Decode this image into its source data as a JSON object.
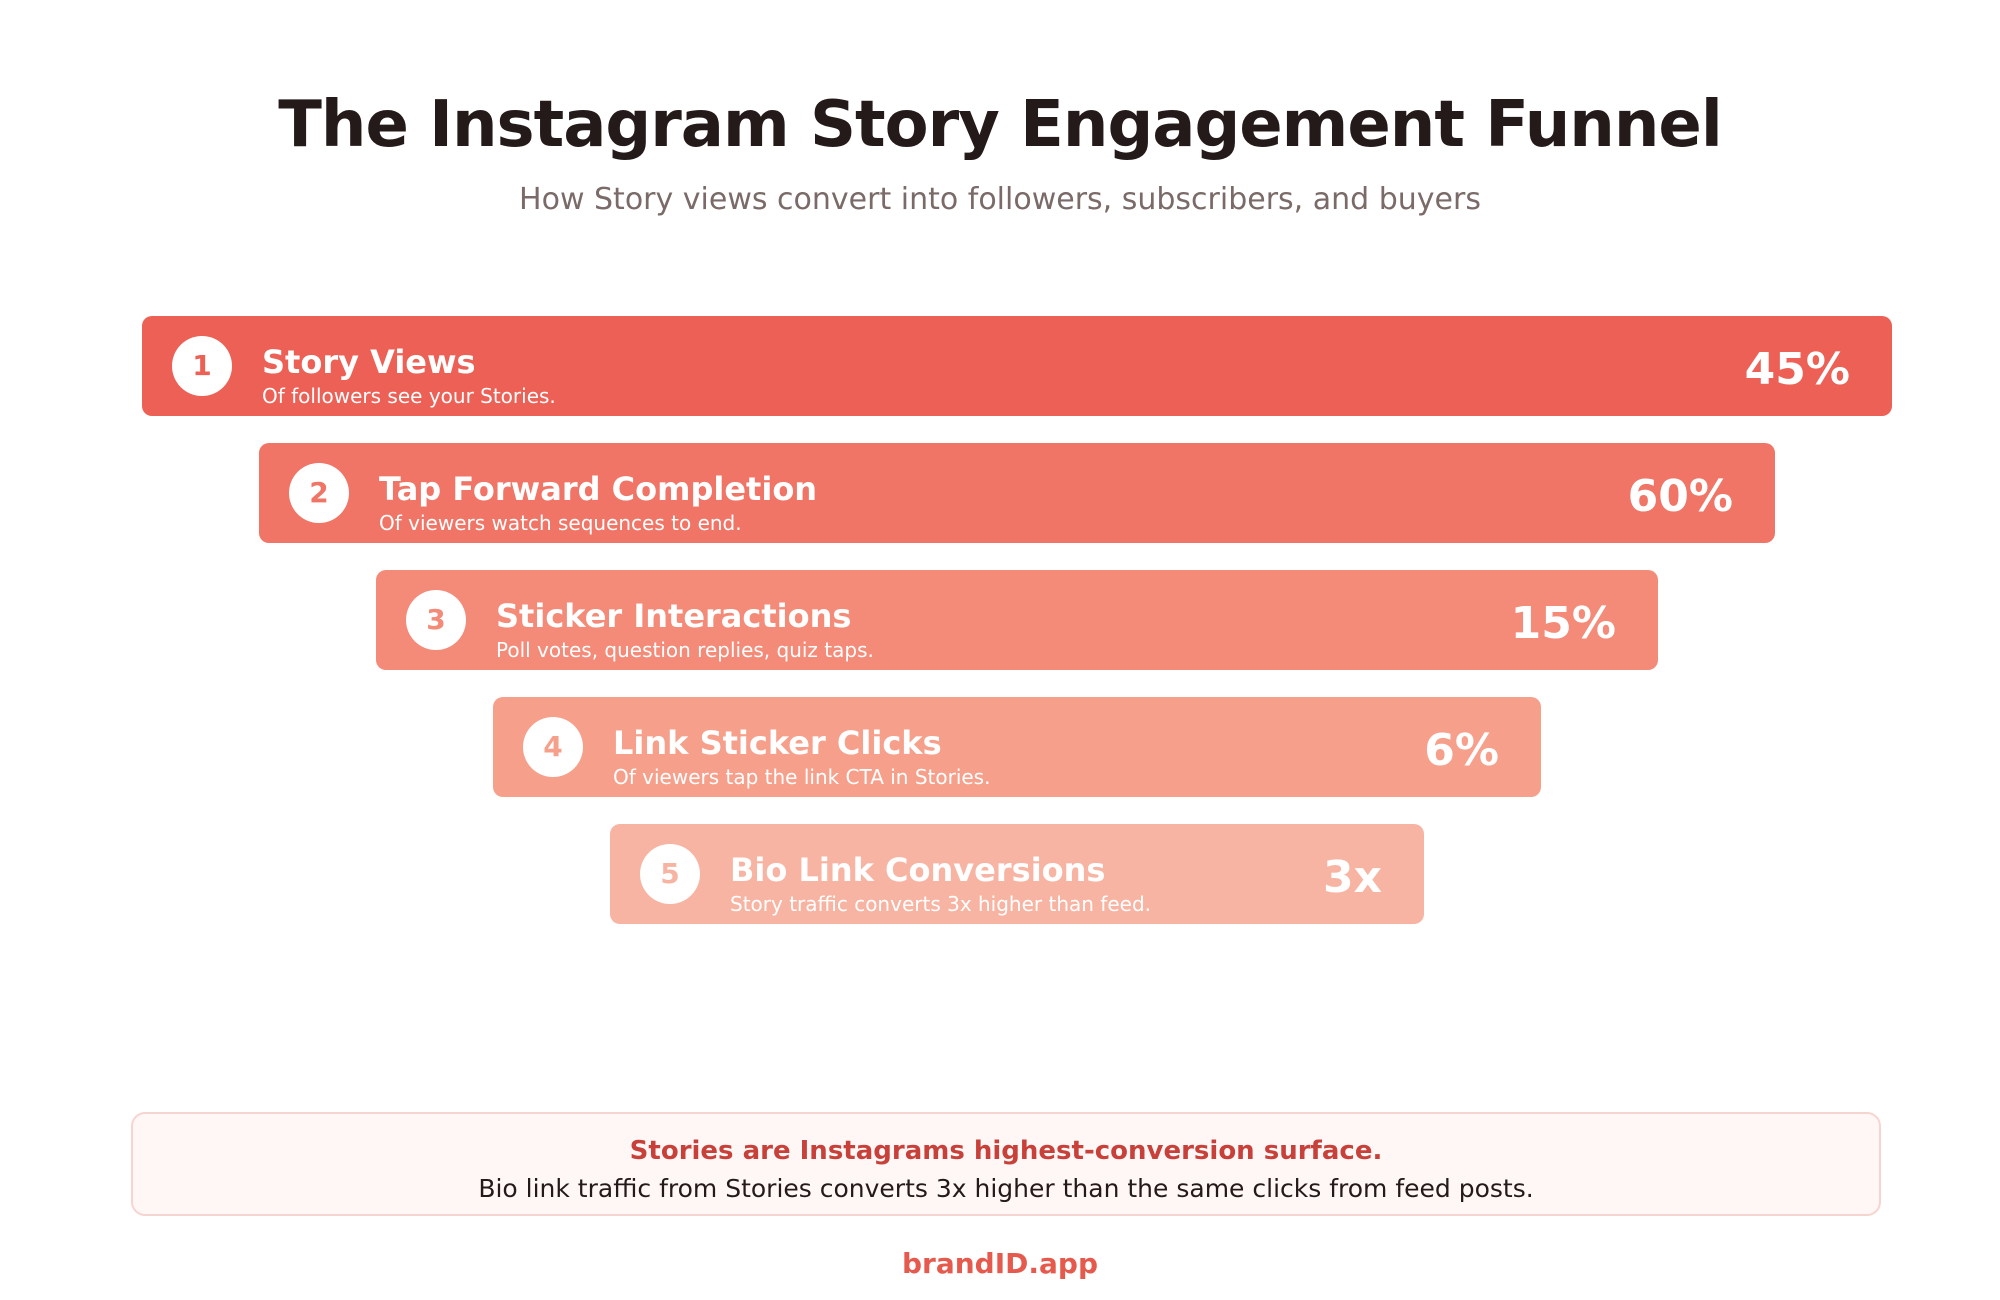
{
  "header": {
    "title": "The Instagram Story Engagement Funnel",
    "subtitle": "How Story views convert into followers, subscribers, and buyers"
  },
  "stages": [
    {
      "number": "1",
      "name": "Story Views",
      "description": "Of followers see your Stories.",
      "value": "45%",
      "color": "#ec6056"
    },
    {
      "number": "2",
      "name": "Tap Forward Completion",
      "description": "Of viewers watch sequences to end.",
      "value": "60%",
      "color": "#f07566"
    },
    {
      "number": "3",
      "name": "Sticker Interactions",
      "description": "Poll votes, question replies, quiz taps.",
      "value": "15%",
      "color": "#f48a78"
    },
    {
      "number": "4",
      "name": "Link Sticker Clicks",
      "description": "Of viewers tap the link CTA in Stories.",
      "value": "6%",
      "color": "#f6a08c"
    },
    {
      "number": "5",
      "name": "Bio Link Conversions",
      "description": "Story traffic converts 3x higher than feed.",
      "value": "3x",
      "color": "#f8b4a2"
    }
  ],
  "callout": {
    "headline": "Stories are Instagrams highest-conversion surface.",
    "body": "Bio link traffic from Stories converts 3x higher than the same clicks from feed posts."
  },
  "footer": {
    "brand": "brandID.app"
  }
}
